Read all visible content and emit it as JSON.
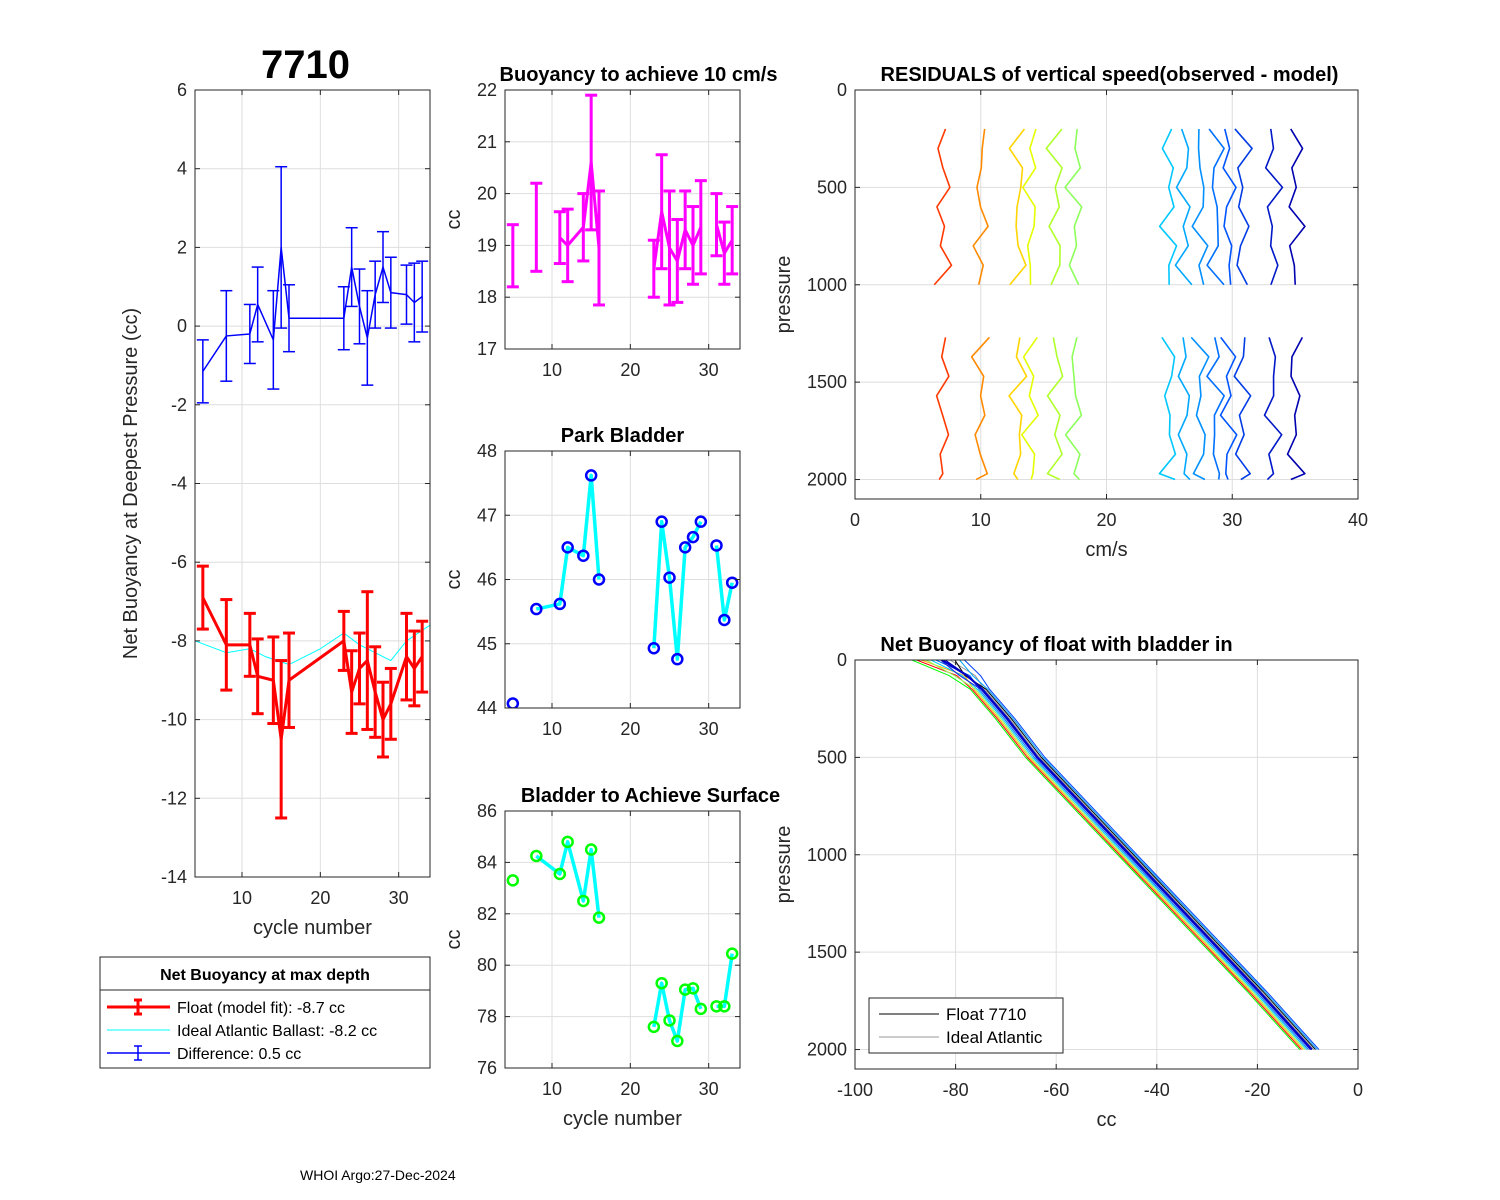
{
  "figure_title": "7710",
  "footer": "WHOI Argo:27-Dec-2024",
  "chart_data": [
    {
      "id": "net-buoyancy",
      "type": "line",
      "title": "7710",
      "xlabel": "cycle number",
      "ylabel": "Net Buoyancy at Deepest Pressure (cc)",
      "xlim": [
        4,
        34
      ],
      "ylim": [
        -14,
        6
      ],
      "xticks": [
        10,
        20,
        30
      ],
      "yticks": [
        -14,
        -12,
        -10,
        -8,
        -6,
        -4,
        -2,
        0,
        2,
        4,
        6
      ],
      "series": [
        {
          "name": "Float (model fit)",
          "color": "#ff0000",
          "x": [
            5,
            8,
            11,
            12,
            14,
            15,
            16,
            23,
            24,
            25,
            26,
            27,
            28,
            29,
            31,
            32,
            33
          ],
          "values": [
            -6.9,
            -8.1,
            -8.1,
            -8.9,
            -9.0,
            -10.5,
            -9.0,
            -8.0,
            -9.3,
            -8.7,
            -8.5,
            -9.3,
            -10.0,
            -9.6,
            -8.4,
            -8.7,
            -8.4
          ],
          "err": [
            0.8,
            1.15,
            0.8,
            0.95,
            1.1,
            2.0,
            1.2,
            0.75,
            1.05,
            0.9,
            1.75,
            1.15,
            0.95,
            0.9,
            1.1,
            0.95,
            0.9
          ]
        },
        {
          "name": "Ideal Atlantic Ballast",
          "color": "#00ffff",
          "x": [
            4,
            8,
            11,
            13,
            16,
            20,
            23,
            25,
            27,
            29,
            31,
            34
          ],
          "values": [
            -8.0,
            -8.3,
            -8.2,
            -8.4,
            -8.6,
            -8.2,
            -7.8,
            -8.1,
            -8.3,
            -8.5,
            -8.0,
            -7.6
          ]
        },
        {
          "name": "Difference",
          "color": "#0000ff",
          "x": [
            5,
            8,
            11,
            12,
            14,
            15,
            16,
            23,
            24,
            25,
            26,
            27,
            28,
            29,
            31,
            32,
            33
          ],
          "values": [
            -1.15,
            -0.25,
            -0.2,
            0.55,
            -0.35,
            2.0,
            0.2,
            0.2,
            1.5,
            0.5,
            -0.3,
            0.8,
            1.5,
            0.85,
            0.8,
            0.6,
            0.75
          ],
          "err": [
            0.8,
            1.15,
            0.75,
            0.95,
            1.25,
            2.05,
            0.85,
            0.8,
            1.0,
            0.95,
            1.2,
            0.85,
            0.9,
            0.9,
            0.75,
            1.0,
            0.9
          ]
        }
      ],
      "legend": {
        "title": "Net Buoyancy at max depth",
        "entries": [
          "Float (model fit):  -8.7 cc",
          "Ideal Atlantic Ballast:  -8.2 cc",
          "Difference:   0.5 cc"
        ]
      }
    },
    {
      "id": "buoyancy-10cms",
      "type": "line",
      "title": "Buoyancy to achieve 10 cm/s",
      "xlabel": "",
      "ylabel": "cc",
      "xlim": [
        4,
        34
      ],
      "ylim": [
        17,
        22
      ],
      "xticks": [
        10,
        20,
        30
      ],
      "yticks": [
        17,
        18,
        19,
        20,
        21,
        22
      ],
      "color": "#ff00ff",
      "x": [
        5,
        8,
        11,
        12,
        14,
        15,
        16,
        23,
        24,
        25,
        26,
        27,
        28,
        29,
        31,
        32,
        33
      ],
      "values": [
        18.8,
        19.35,
        19.15,
        19.0,
        19.35,
        20.6,
        18.95,
        18.55,
        19.65,
        18.95,
        18.7,
        19.3,
        19.0,
        19.35,
        19.4,
        18.85,
        19.1
      ],
      "err": [
        0.6,
        0.85,
        0.5,
        0.7,
        0.65,
        1.3,
        1.1,
        0.55,
        1.1,
        1.1,
        0.8,
        0.75,
        0.75,
        0.9,
        0.6,
        0.6,
        0.65
      ]
    },
    {
      "id": "park-bladder",
      "type": "line",
      "title": "Park Bladder",
      "xlabel": "",
      "ylabel": "cc",
      "xlim": [
        4,
        34
      ],
      "ylim": [
        44,
        48
      ],
      "xticks": [
        10,
        20,
        30
      ],
      "yticks": [
        44,
        45,
        46,
        47,
        48
      ],
      "line_color": "#00ffff",
      "marker_color": "#0000ff",
      "x": [
        5,
        8,
        11,
        12,
        14,
        15,
        16,
        23,
        24,
        25,
        26,
        27,
        28,
        29,
        31,
        32,
        33
      ],
      "values": [
        44.07,
        45.54,
        45.62,
        46.5,
        46.37,
        47.62,
        46.0,
        44.93,
        46.9,
        46.03,
        44.76,
        46.5,
        46.66,
        46.9,
        46.53,
        45.37,
        45.95
      ],
      "connected": [
        false,
        false,
        true,
        true,
        true,
        true,
        true,
        false,
        true,
        true,
        true,
        true,
        true,
        true,
        false,
        true,
        true
      ]
    },
    {
      "id": "bladder-surface",
      "type": "line",
      "title": "Bladder to Achieve Surface",
      "xlabel": "cycle number",
      "ylabel": "cc",
      "xlim": [
        4,
        34
      ],
      "ylim": [
        76,
        86
      ],
      "xticks": [
        10,
        20,
        30
      ],
      "yticks": [
        76,
        78,
        80,
        82,
        84,
        86
      ],
      "line_color": "#00ffff",
      "marker_color": "#00ff00",
      "x": [
        5,
        8,
        11,
        12,
        14,
        15,
        16,
        23,
        24,
        25,
        26,
        27,
        28,
        29,
        31,
        32,
        33
      ],
      "values": [
        83.3,
        84.25,
        83.55,
        84.8,
        82.5,
        84.5,
        81.85,
        77.6,
        79.3,
        77.85,
        77.05,
        79.05,
        79.1,
        78.3,
        78.4,
        78.4,
        80.45
      ],
      "connected": [
        false,
        false,
        true,
        true,
        true,
        true,
        true,
        false,
        true,
        true,
        true,
        true,
        true,
        true,
        false,
        true,
        true
      ]
    },
    {
      "id": "residuals",
      "type": "line",
      "title": "RESIDUALS of vertical speed(observed - model)",
      "xlabel": "cm/s",
      "ylabel": "pressure",
      "xlim": [
        0,
        40
      ],
      "ylim": [
        0,
        2100
      ],
      "y_reversed": true,
      "xticks": [
        0,
        10,
        20,
        30,
        40
      ],
      "yticks": [
        0,
        500,
        1000,
        1500,
        2000
      ],
      "segments": [
        {
          "pressure": [
            200,
            350,
            500,
            650,
            750,
            850,
            950,
            1000
          ],
          "pressure2": [
            1300,
            1450,
            1600,
            1700,
            1800,
            1900,
            2000
          ]
        },
        {
          "pressure": [
            1300,
            1400,
            1500,
            1600,
            1700,
            1800,
            1900,
            2000
          ]
        }
      ],
      "series": [
        {
          "offset": 7.0,
          "color": "#ff3a00"
        },
        {
          "offset": 10.0,
          "color": "#ff8a00"
        },
        {
          "offset": 13.0,
          "color": "#ffd400"
        },
        {
          "offset": 14.0,
          "color": "#e5ff00"
        },
        {
          "offset": 16.0,
          "color": "#b0ff2a"
        },
        {
          "offset": 17.5,
          "color": "#8cff5a"
        },
        {
          "offset": 25.0,
          "color": "#00c8ff"
        },
        {
          "offset": 26.2,
          "color": "#00a8ff"
        },
        {
          "offset": 27.5,
          "color": "#0090ff"
        },
        {
          "offset": 28.7,
          "color": "#0070ff"
        },
        {
          "offset": 29.7,
          "color": "#0055ff"
        },
        {
          "offset": 30.8,
          "color": "#003ce6"
        },
        {
          "offset": 33.2,
          "color": "#0018c8"
        },
        {
          "offset": 35.0,
          "color": "#0000b0"
        }
      ]
    },
    {
      "id": "net-buoyancy-profile",
      "type": "line",
      "title": "Net Buoyancy of float with bladder in",
      "xlabel": "cc",
      "ylabel": "pressure",
      "xlim": [
        -100,
        0
      ],
      "ylim": [
        0,
        2100
      ],
      "y_reversed": true,
      "xticks": [
        -100,
        -80,
        -60,
        -40,
        -20,
        0
      ],
      "yticks": [
        0,
        500,
        1000,
        1500,
        2000
      ],
      "profile": {
        "pressure": [
          0,
          80,
          150,
          300,
          500,
          800,
          1100,
          1400,
          1700,
          2000
        ],
        "cc": [
          -83,
          -78,
          -75,
          -70,
          -64,
          -53,
          -42,
          -31,
          -20,
          -9.5
        ]
      },
      "legend": {
        "entries": [
          "Float 7710",
          "Ideal Atlantic"
        ],
        "colors": [
          "#000000",
          "#9a9a9a"
        ]
      }
    }
  ]
}
